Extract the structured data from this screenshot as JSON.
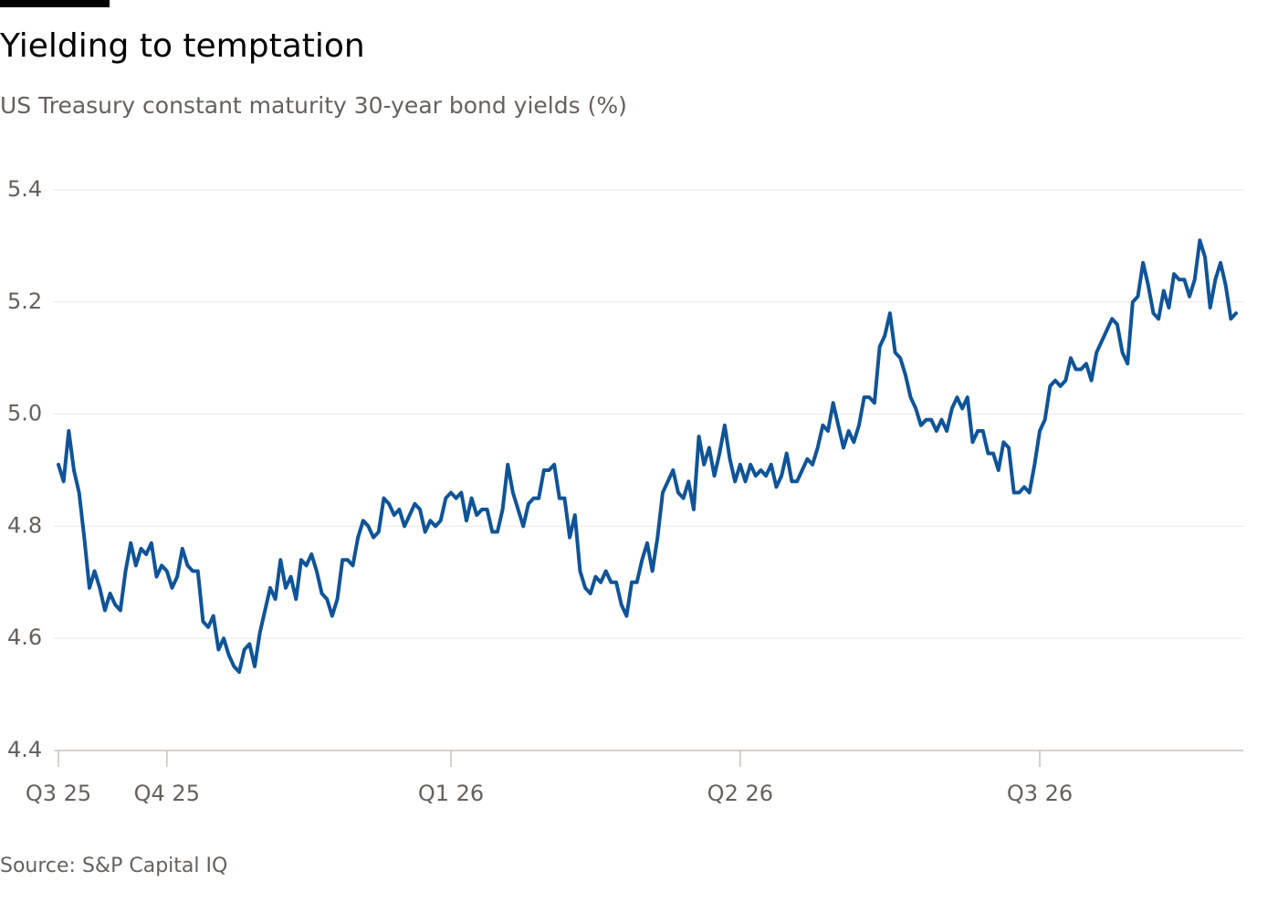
{
  "chart_data": {
    "type": "line",
    "title": "Yielding to temptation",
    "subtitle": "US Treasury constant maturity 30-year bond yields (%)",
    "source": "Source: S&P Capital IQ",
    "color": "#0f5499",
    "grid": true,
    "ylim": [
      4.4,
      5.4
    ],
    "yticks": [
      4.4,
      4.6,
      4.8,
      {
        "value": 5,
        "label": "5.0"
      },
      5.2,
      5.4
    ],
    "categories": [
      "Q3 25",
      null,
      null,
      null,
      null,
      null,
      null,
      null,
      null,
      null,
      null,
      null,
      null,
      null,
      null,
      null,
      null,
      null,
      null,
      null,
      null,
      "Q4 25",
      null,
      null,
      null,
      null,
      null,
      null,
      null,
      null,
      null,
      null,
      null,
      null,
      null,
      null,
      null,
      null,
      null,
      null,
      null,
      null,
      null,
      null,
      null,
      null,
      null,
      null,
      null,
      null,
      null,
      null,
      null,
      null,
      null,
      null,
      null,
      null,
      null,
      null,
      null,
      null,
      null,
      null,
      null,
      null,
      null,
      null,
      null,
      null,
      null,
      null,
      null,
      null,
      null,
      null,
      "Q1 26",
      null,
      null,
      null,
      null,
      null,
      null,
      null,
      null,
      null,
      null,
      null,
      null,
      null,
      null,
      null,
      null,
      null,
      null,
      null,
      null,
      null,
      null,
      null,
      null,
      null,
      null,
      null,
      null,
      null,
      null,
      null,
      null,
      null,
      null,
      null,
      null,
      null,
      null,
      null,
      null,
      null,
      null,
      null,
      null,
      null,
      null,
      null,
      null,
      null,
      null,
      null,
      null,
      null,
      null,
      null,
      "Q2 26",
      null,
      null,
      null,
      null,
      null,
      null,
      null,
      null,
      null,
      null,
      null,
      null,
      null,
      null,
      null,
      null,
      null,
      null,
      null,
      null,
      null,
      null,
      null,
      null,
      null,
      null,
      null,
      null,
      null,
      null,
      null,
      null,
      null,
      null,
      null,
      null,
      null,
      null,
      null,
      null,
      null,
      null,
      null,
      null,
      null,
      null,
      null,
      null,
      null,
      null,
      null,
      null,
      null,
      null,
      null,
      null,
      null,
      "Q3 26",
      null,
      null,
      null,
      null,
      null,
      null,
      null,
      null,
      null,
      null,
      null,
      null,
      null,
      null,
      null,
      null,
      null,
      null,
      null,
      null,
      null,
      null,
      null,
      null,
      null,
      null,
      null,
      null,
      null,
      null,
      null,
      null,
      null,
      null,
      null,
      null,
      null,
      null
    ],
    "values": [
      4.91,
      4.88,
      4.97,
      4.9,
      4.86,
      4.78,
      4.69,
      4.72,
      4.69,
      4.65,
      4.68,
      4.66,
      4.65,
      4.72,
      4.77,
      4.73,
      4.76,
      4.75,
      4.77,
      4.71,
      4.73,
      4.72,
      4.69,
      4.71,
      4.76,
      4.73,
      4.72,
      4.72,
      4.63,
      4.62,
      4.64,
      4.58,
      4.6,
      4.57,
      4.55,
      4.54,
      4.58,
      4.59,
      4.55,
      4.61,
      4.65,
      4.69,
      4.67,
      4.74,
      4.69,
      4.71,
      4.67,
      4.74,
      4.73,
      4.75,
      4.72,
      4.68,
      4.67,
      4.64,
      4.67,
      4.74,
      4.74,
      4.73,
      4.78,
      4.81,
      4.8,
      4.78,
      4.79,
      4.85,
      4.84,
      4.82,
      4.83,
      4.8,
      4.82,
      4.84,
      4.83,
      4.79,
      4.81,
      4.8,
      4.81,
      4.85,
      4.86,
      4.85,
      4.86,
      4.81,
      4.85,
      4.82,
      4.83,
      4.83,
      4.79,
      4.79,
      4.83,
      4.91,
      4.86,
      4.83,
      4.8,
      4.84,
      4.85,
      4.85,
      4.9,
      4.9,
      4.91,
      4.85,
      4.85,
      4.78,
      4.82,
      4.72,
      4.69,
      4.68,
      4.71,
      4.7,
      4.72,
      4.7,
      4.7,
      4.66,
      4.64,
      4.7,
      4.7,
      4.74,
      4.77,
      4.72,
      4.78,
      4.86,
      4.88,
      4.9,
      4.86,
      4.85,
      4.88,
      4.83,
      4.96,
      4.91,
      4.94,
      4.89,
      4.93,
      4.98,
      4.92,
      4.88,
      4.91,
      4.88,
      4.91,
      4.89,
      4.9,
      4.89,
      4.91,
      4.87,
      4.89,
      4.93,
      4.88,
      4.88,
      4.9,
      4.92,
      4.91,
      4.94,
      4.98,
      4.97,
      5.02,
      4.98,
      4.94,
      4.97,
      4.95,
      4.98,
      5.03,
      5.03,
      5.02,
      5.12,
      5.14,
      5.18,
      5.11,
      5.1,
      5.07,
      5.03,
      5.01,
      4.98,
      4.99,
      4.99,
      4.97,
      4.99,
      4.97,
      5.01,
      5.03,
      5.01,
      5.03,
      4.95,
      4.97,
      4.97,
      4.93,
      4.93,
      4.9,
      4.95,
      4.94,
      4.86,
      4.86,
      4.87,
      4.86,
      4.91,
      4.97,
      4.99,
      5.05,
      5.06,
      5.05,
      5.06,
      5.1,
      5.08,
      5.08,
      5.09,
      5.06,
      5.11,
      5.13,
      5.15,
      5.17,
      5.16,
      5.11,
      5.09,
      5.2,
      5.21,
      5.27,
      5.23,
      5.18,
      5.17,
      5.22,
      5.19,
      5.25,
      5.24,
      5.24,
      5.21,
      5.24,
      5.31,
      5.28,
      5.19,
      5.24,
      5.27,
      5.23,
      5.17,
      5.18
    ]
  }
}
